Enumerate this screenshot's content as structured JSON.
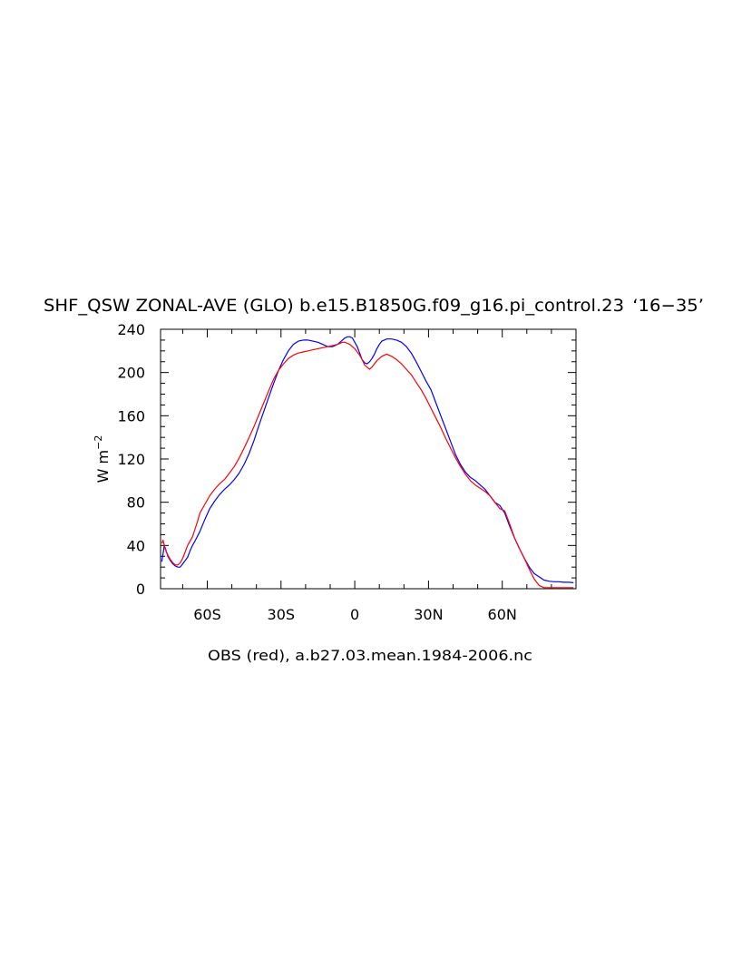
{
  "chart_data": {
    "type": "line",
    "title": "SHF_QSW ZONAL-AVE (GLO) b.e15.B1850G.f09_g16.pi_control.23 ‘16−35’",
    "title_main": "SHF_QSW ZONAL-AVE (GLO) b.e15.B1850G.f09_g16.pi_control.23",
    "title_years": "16−35",
    "xlabel": "OBS (red), a.b27.03.mean.1984-2006.nc",
    "ylabel": "W m",
    "ylabel_exp": "−2",
    "xlim": [
      -79,
      90
    ],
    "ylim": [
      0,
      240
    ],
    "yticks": [
      0,
      40,
      80,
      120,
      160,
      200,
      240
    ],
    "yminor_step": 10,
    "xticks": [
      {
        "value": -60,
        "label": "60S"
      },
      {
        "value": -30,
        "label": "30S"
      },
      {
        "value": 0,
        "label": "0"
      },
      {
        "value": 30,
        "label": "30N"
      },
      {
        "value": 60,
        "label": "60N"
      }
    ],
    "xminor_step": 10,
    "grid": false,
    "series": [
      {
        "color": "#0000ff",
        "x": [
          -78.5,
          -78,
          -77.5,
          -77,
          -76,
          -75,
          -74,
          -73,
          -72,
          -71,
          -70,
          -69,
          -68,
          -67,
          -66,
          -65,
          -63,
          -61,
          -59,
          -57,
          -55,
          -53,
          -51,
          -49,
          -47,
          -45,
          -43,
          -41,
          -39,
          -37,
          -35,
          -33,
          -31,
          -29,
          -27,
          -25,
          -23,
          -21,
          -19,
          -17,
          -15,
          -13,
          -11,
          -9,
          -7,
          -5,
          -4,
          -3,
          -2,
          -1,
          0,
          1,
          2,
          3,
          4,
          5,
          6,
          7,
          8,
          9,
          10,
          11,
          12,
          13,
          14,
          15,
          17,
          19,
          21,
          23,
          25,
          27,
          29,
          31,
          33,
          35,
          37,
          39,
          41,
          43,
          45,
          47,
          49,
          51,
          53,
          55,
          57,
          59,
          61,
          63,
          65,
          67,
          69,
          71,
          73,
          75,
          77,
          79,
          81,
          83,
          85,
          87,
          89
        ],
        "values": [
          25,
          32,
          40,
          37,
          30,
          26,
          23,
          21,
          20,
          20,
          23,
          26,
          29,
          35,
          40,
          44,
          53,
          64,
          74,
          81,
          87,
          92,
          96,
          101,
          107,
          115,
          125,
          137,
          151,
          164,
          177,
          190,
          202,
          212,
          220,
          226,
          229,
          230,
          230,
          229,
          228,
          226,
          224,
          224,
          226,
          230,
          232,
          233,
          233,
          232,
          228,
          224,
          218,
          212,
          209,
          208,
          210,
          213,
          217,
          222,
          226,
          229,
          230,
          231,
          231,
          231,
          230,
          228,
          224,
          218,
          210,
          201,
          192,
          184,
          172,
          160,
          148,
          136,
          124,
          115,
          108,
          103,
          100,
          96,
          92,
          86,
          80,
          77,
          70,
          58,
          47,
          37,
          28,
          20,
          14,
          11,
          8,
          7,
          6.5,
          6.5,
          6,
          6,
          5.5
        ]
      },
      {
        "color": "#ff0000",
        "x": [
          -78.5,
          -78,
          -77,
          -76,
          -75,
          -74,
          -73,
          -72,
          -71,
          -70,
          -69,
          -68,
          -67,
          -66,
          -65,
          -64,
          -63,
          -61,
          -59,
          -57,
          -55,
          -53,
          -51,
          -49,
          -47,
          -45,
          -43,
          -41,
          -39,
          -37,
          -35,
          -33,
          -31,
          -29,
          -27,
          -25,
          -23,
          -21,
          -19,
          -17,
          -15,
          -13,
          -11,
          -9,
          -7,
          -5,
          -4,
          -3,
          -2,
          -1,
          0,
          1,
          2,
          3,
          4,
          5,
          6,
          7,
          8,
          9,
          10,
          11,
          12,
          13,
          14,
          15,
          17,
          19,
          21,
          23,
          25,
          27,
          29,
          31,
          33,
          35,
          37,
          39,
          41,
          43,
          45,
          47,
          49,
          51,
          53,
          55,
          57,
          59,
          61,
          63,
          65,
          67,
          69,
          71,
          73,
          75,
          77,
          79,
          81,
          83,
          85,
          87,
          89
        ],
        "values": [
          42,
          45,
          36,
          31,
          27,
          24,
          22,
          22,
          24,
          28,
          34,
          40,
          44,
          48,
          55,
          62,
          70,
          78,
          86,
          92,
          97,
          101,
          107,
          113,
          121,
          130,
          140,
          150,
          161,
          172,
          183,
          194,
          202,
          208,
          213,
          216,
          218,
          219,
          220,
          221,
          222,
          223,
          224,
          225,
          226,
          228,
          228,
          227,
          226,
          224,
          222,
          219,
          216,
          212,
          207,
          205,
          203,
          205,
          208,
          211,
          213,
          215,
          216,
          217,
          216,
          215,
          212,
          208,
          203,
          198,
          191,
          184,
          176,
          167,
          158,
          149,
          139,
          130,
          121,
          113,
          106,
          100,
          96,
          93,
          90,
          86,
          80,
          74,
          72,
          60,
          47,
          37,
          28,
          18,
          9,
          3,
          1,
          1,
          1,
          1,
          1,
          1,
          1
        ]
      }
    ]
  }
}
